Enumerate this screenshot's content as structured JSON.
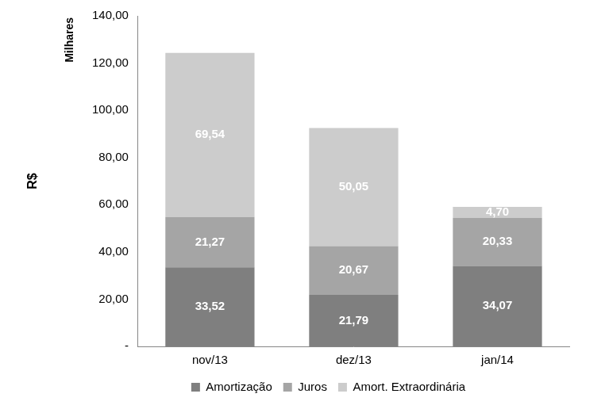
{
  "chart_data": {
    "type": "bar",
    "stacked": true,
    "y_label": "R$",
    "annotations": [
      "Milhares"
    ],
    "categories": [
      "nov/13",
      "dez/13",
      "jan/14"
    ],
    "series": [
      {
        "name": "Amortização",
        "color": "#7f7f7f",
        "values": [
          33.52,
          21.79,
          34.07
        ],
        "value_labels": [
          "33,52",
          "21,79",
          "34,07"
        ]
      },
      {
        "name": "Juros",
        "color": "#a5a5a5",
        "values": [
          21.27,
          20.67,
          20.33
        ],
        "value_labels": [
          "21,27",
          "20,67",
          "20,33"
        ]
      },
      {
        "name": "Amort. Extraordinária",
        "color": "#cccccc",
        "values": [
          69.54,
          50.05,
          4.7
        ],
        "value_labels": [
          "69,54",
          "50,05",
          "4,70"
        ]
      }
    ],
    "ylim": [
      0,
      140
    ],
    "yticks": [
      {
        "value": 0,
        "label": "-"
      },
      {
        "value": 20,
        "label": "20,00"
      },
      {
        "value": 40,
        "label": "40,00"
      },
      {
        "value": 60,
        "label": "60,00"
      },
      {
        "value": 80,
        "label": "80,00"
      },
      {
        "value": 100,
        "label": "100,00"
      },
      {
        "value": 120,
        "label": "120,00"
      },
      {
        "value": 140,
        "label": "140,00"
      }
    ],
    "grid": false,
    "legend": "bottom",
    "data_labels": true
  }
}
